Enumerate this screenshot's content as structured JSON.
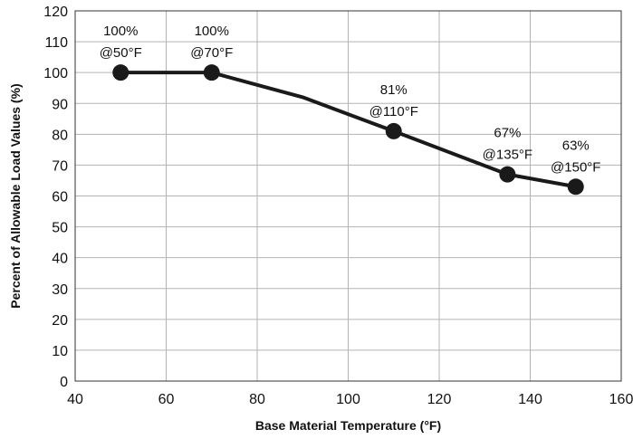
{
  "chart_data": {
    "type": "line",
    "title": "",
    "xlabel": "Base Material Temperature (°F)",
    "ylabel": "Percent of Allowable Load Values (%)",
    "xlim": [
      40,
      160
    ],
    "ylim": [
      0,
      120
    ],
    "x_ticks": [
      40,
      60,
      80,
      100,
      120,
      140,
      160
    ],
    "y_ticks": [
      0,
      10,
      20,
      30,
      40,
      50,
      60,
      70,
      80,
      90,
      100,
      110,
      120
    ],
    "grid": true,
    "legend": "none",
    "line_color": "#1a1a1a",
    "grid_color": "#b3b3b3",
    "series": [
      {
        "x": [
          50,
          70,
          90,
          110,
          135,
          150
        ],
        "y": [
          100,
          100,
          92,
          81,
          67,
          63
        ]
      }
    ],
    "markers": [
      {
        "x": 50,
        "y": 100
      },
      {
        "x": 70,
        "y": 100
      },
      {
        "x": 110,
        "y": 81
      },
      {
        "x": 135,
        "y": 67
      },
      {
        "x": 150,
        "y": 63
      }
    ],
    "annotations": [
      {
        "x": 50,
        "y": 100,
        "line1": "100%",
        "line2": "@50°F"
      },
      {
        "x": 70,
        "y": 100,
        "line1": "100%",
        "line2": "@70°F"
      },
      {
        "x": 110,
        "y": 81,
        "line1": "81%",
        "line2": "@110°F"
      },
      {
        "x": 135,
        "y": 67,
        "line1": "67%",
        "line2": "@135°F"
      },
      {
        "x": 150,
        "y": 63,
        "line1": "63%",
        "line2": "@150°F"
      }
    ]
  }
}
